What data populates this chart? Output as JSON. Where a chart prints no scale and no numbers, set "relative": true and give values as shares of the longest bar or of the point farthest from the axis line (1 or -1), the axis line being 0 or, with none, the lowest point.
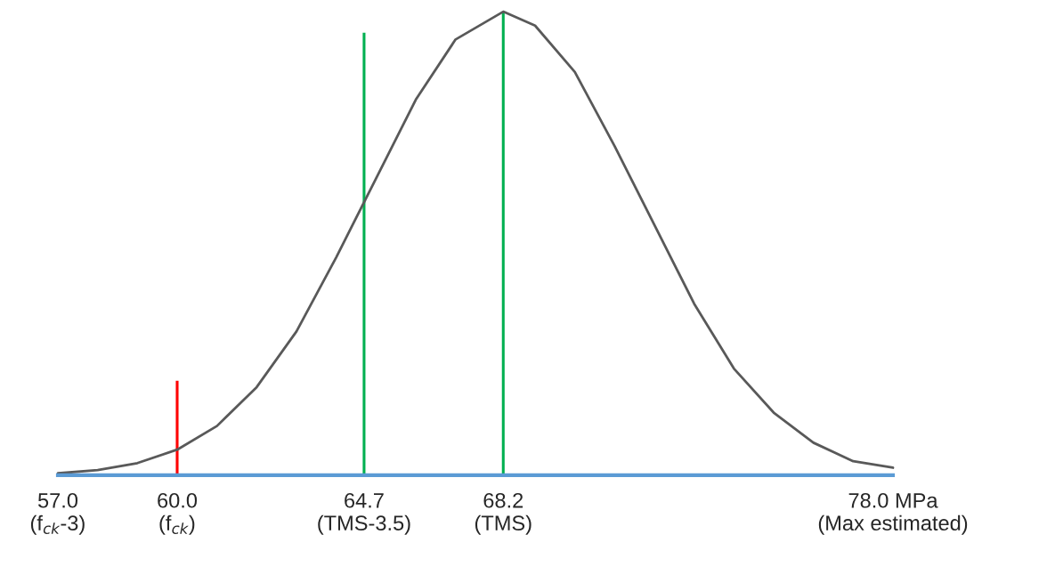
{
  "chart_data": {
    "type": "line",
    "relative": true,
    "tick_labels": "x",
    "grid": false,
    "legend": false,
    "marker": "none",
    "line_style": "solid",
    "xlim": [
      57.0,
      78.0
    ],
    "xticks": [
      {
        "value": 57.0,
        "label": "57.0\n(f$_{ck}$-3)"
      },
      {
        "value": 60.0,
        "label": "60.0\n(f$_{ck}$)"
      },
      {
        "value": 64.7,
        "label": "64.7\n(TMS-3.5)"
      },
      {
        "value": 68.2,
        "label": "68.2\n(TMS)"
      },
      {
        "value": 78.0,
        "label": "78.0 MPa\n(Max estimated)"
      }
    ],
    "series": [
      {
        "color": "#595959",
        "x": [
          57,
          58,
          59,
          60,
          61,
          62,
          63,
          64,
          65,
          66,
          67,
          68.2,
          69,
          70,
          71,
          72,
          73,
          74,
          75,
          76,
          77,
          78
        ],
        "values": [
          0.004,
          0.011,
          0.026,
          0.055,
          0.106,
          0.19,
          0.31,
          0.47,
          0.64,
          0.81,
          0.94,
          1.0,
          0.97,
          0.87,
          0.71,
          0.54,
          0.37,
          0.23,
          0.135,
          0.07,
          0.03,
          0.016
        ]
      },
      {
        "type": "bar",
        "color": "#ff0000",
        "x": [
          60.0
        ],
        "values": [
          0.205
        ]
      },
      {
        "type": "bar",
        "color": "#00b050",
        "x": [
          64.7
        ],
        "values": [
          0.956
        ]
      },
      {
        "type": "bar",
        "color": "#00b050",
        "x": [
          68.2
        ],
        "values": [
          1.0
        ]
      }
    ]
  }
}
